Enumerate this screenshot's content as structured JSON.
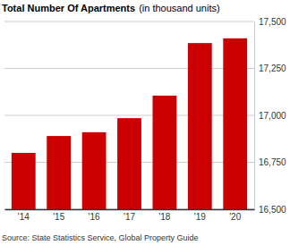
{
  "chart_data": {
    "type": "bar",
    "title": "Total Number Of Apartments",
    "subtitle": "(in thousand units)",
    "categories": [
      "'14",
      "'15",
      "'16",
      "'17",
      "'18",
      "'19",
      "'20"
    ],
    "values": [
      16800,
      16890,
      16910,
      16985,
      17105,
      17385,
      17410
    ],
    "color": "#cc0000",
    "ylim": [
      16500,
      17500
    ],
    "yticks": [
      {
        "value": 16500,
        "label": "16,500"
      },
      {
        "value": 16750,
        "label": "16,750"
      },
      {
        "value": 17000,
        "label": "17,000"
      },
      {
        "value": 17250,
        "label": "17,250"
      },
      {
        "value": 17500,
        "label": "17,500"
      }
    ],
    "grid": true,
    "source": "Source: State Statistics Service, Global Property Guide"
  }
}
